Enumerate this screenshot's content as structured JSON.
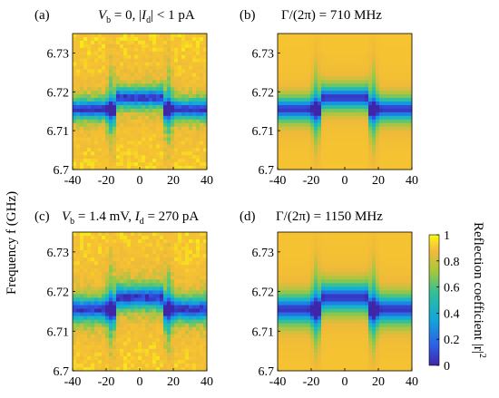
{
  "chart_data": [
    {
      "type": "heatmap",
      "panel_label": "(a)",
      "title_parts": [
        "V",
        "b",
        " = 0,  |",
        "I",
        "d",
        "| < 1 pA"
      ],
      "source": "measured",
      "x_ticks": [
        "-40",
        "-20",
        "0",
        "20",
        "40"
      ],
      "y_ticks": [
        "6.73",
        "6.72",
        "6.71",
        "6.7"
      ],
      "xlim": [
        -40,
        40
      ],
      "ylim": [
        6.7,
        6.735
      ]
    },
    {
      "type": "heatmap",
      "panel_label": "(b)",
      "title": "Γ/(2π) = 710 MHz",
      "source": "simulated",
      "x_ticks": [
        "-40",
        "-20",
        "0",
        "20",
        "40"
      ],
      "y_ticks": [
        "6.73",
        "6.72",
        "6.71",
        "6.7"
      ],
      "xlim": [
        -40,
        40
      ],
      "ylim": [
        6.7,
        6.735
      ]
    },
    {
      "type": "heatmap",
      "panel_label": "(c)",
      "title_parts": [
        "V",
        "b",
        " = 1.4 mV, ",
        "I",
        "d",
        " = 270 pA"
      ],
      "source": "measured",
      "x_ticks": [
        "-40",
        "-20",
        "0",
        "20",
        "40"
      ],
      "y_ticks": [
        "6.73",
        "6.72",
        "6.71",
        "6.7"
      ],
      "xlim": [
        -40,
        40
      ],
      "ylim": [
        6.7,
        6.735
      ]
    },
    {
      "type": "heatmap",
      "panel_label": "(d)",
      "title": "Γ/(2π) = 1150 MHz",
      "source": "simulated",
      "x_ticks": [
        "-40",
        "-20",
        "0",
        "20",
        "40"
      ],
      "y_ticks": [
        "6.73",
        "6.72",
        "6.71",
        "6.7"
      ],
      "xlim": [
        -40,
        40
      ],
      "ylim": [
        6.7,
        6.735
      ]
    }
  ],
  "shared": {
    "ylabel": "Frequency f (GHz)",
    "colorbar": {
      "label": "Reflection coefficient |r|",
      "label_sup": "2",
      "ticks": [
        "1",
        "0.8",
        "0.6",
        "0.4",
        "0.2",
        "0"
      ],
      "range": [
        0,
        1
      ],
      "colormap": "parula"
    }
  },
  "colors": {
    "low": "#3e26a8",
    "blue": "#1f5fd8",
    "cyan": "#12b3d3",
    "green": "#7dcb5b",
    "orange": "#f3b93a",
    "high": "#f9fb0e"
  }
}
